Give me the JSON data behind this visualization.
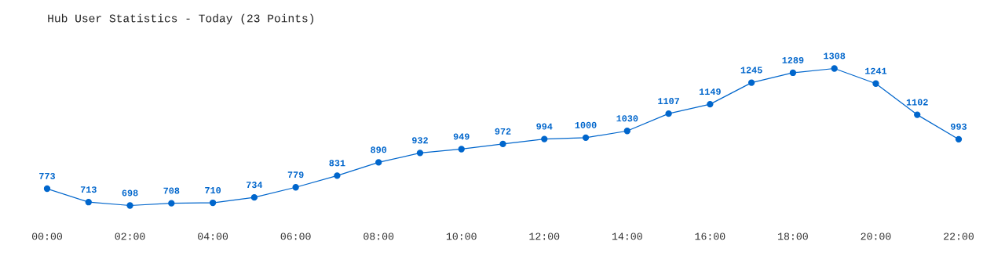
{
  "chart_data": {
    "type": "line",
    "title": "Hub User Statistics - Today (23 Points)",
    "x": [
      0,
      1,
      2,
      3,
      4,
      5,
      6,
      7,
      8,
      9,
      10,
      11,
      12,
      13,
      14,
      15,
      16,
      17,
      18,
      19,
      20,
      21,
      22
    ],
    "series": [
      {
        "color": "#0066cc",
        "values": [
          773,
          713,
          698,
          708,
          710,
          734,
          779,
          831,
          890,
          932,
          949,
          972,
          994,
          1000,
          1030,
          1107,
          1149,
          1245,
          1289,
          1308,
          1241,
          1102,
          993
        ]
      }
    ],
    "xlim": [
      0,
      22
    ],
    "xticks": [
      {
        "value": 0,
        "label": "00:00"
      },
      {
        "value": 2,
        "label": "02:00"
      },
      {
        "value": 4,
        "label": "04:00"
      },
      {
        "value": 6,
        "label": "06:00"
      },
      {
        "value": 8,
        "label": "08:00"
      },
      {
        "value": 10,
        "label": "10:00"
      },
      {
        "value": 12,
        "label": "12:00"
      },
      {
        "value": 14,
        "label": "14:00"
      },
      {
        "value": 16,
        "label": "16:00"
      },
      {
        "value": 18,
        "label": "18:00"
      },
      {
        "value": 20,
        "label": "20:00"
      },
      {
        "value": 22,
        "label": "22:00"
      }
    ],
    "tick_labels": "x",
    "grid": false,
    "legend": false,
    "marker": "circle",
    "line_style": "solid",
    "data_labels": true
  }
}
